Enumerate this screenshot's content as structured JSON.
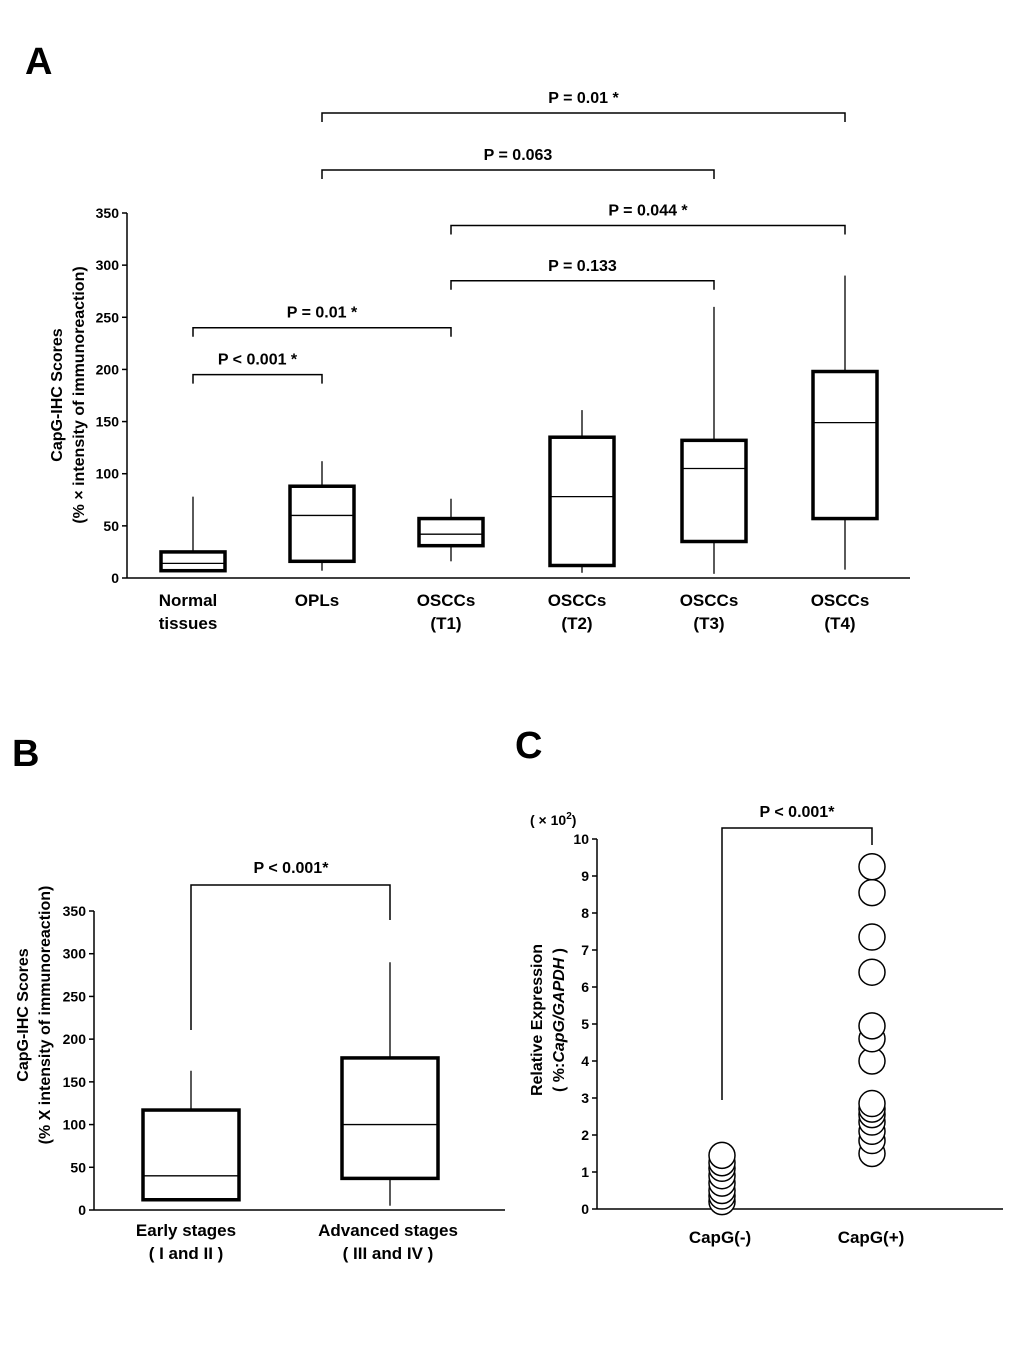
{
  "panels": {
    "a": {
      "letter": "A"
    },
    "b": {
      "letter": "B"
    },
    "c": {
      "letter": "C"
    }
  },
  "chart_data": [
    {
      "panel": "A",
      "type": "box",
      "ylabel_line1": "CapG-IHC Scores",
      "ylabel_line2": "(% × intensity of immunoreaction)",
      "ylim": [
        0,
        350
      ],
      "yticks": [
        0,
        50,
        100,
        150,
        200,
        250,
        300,
        350
      ],
      "categories": [
        {
          "line1": "Normal",
          "line2": "tissues"
        },
        {
          "line1": "OPLs",
          "line2": ""
        },
        {
          "line1": "OSCCs",
          "line2": "(T1)"
        },
        {
          "line1": "OSCCs",
          "line2": "(T2)"
        },
        {
          "line1": "OSCCs",
          "line2": "(T3)"
        },
        {
          "line1": "OSCCs",
          "line2": "(T4)"
        }
      ],
      "boxes": [
        {
          "min": 7,
          "q1": 7,
          "median": 14,
          "q3": 25,
          "max": 78
        },
        {
          "min": 7,
          "q1": 16,
          "median": 60,
          "q3": 88,
          "max": 112
        },
        {
          "min": 16,
          "q1": 31,
          "median": 42,
          "q3": 57,
          "max": 76
        },
        {
          "min": 5,
          "q1": 12,
          "median": 78,
          "q3": 135,
          "max": 161
        },
        {
          "min": 4,
          "q1": 35,
          "median": 105,
          "q3": 132,
          "max": 260
        },
        {
          "min": 8,
          "q1": 57,
          "median": 149,
          "q3": 198,
          "max": 290
        }
      ],
      "comparisons": [
        {
          "from": 0,
          "to": 1,
          "label": "P < 0.001 *",
          "y": 195
        },
        {
          "from": 0,
          "to": 2,
          "label": "P = 0.01 *",
          "y": 240
        },
        {
          "from": 2,
          "to": 4,
          "label": "P = 0.133",
          "y": 285
        },
        {
          "from": 2,
          "to": 5,
          "label": "P = 0.044 *",
          "y": 338
        }
      ],
      "comparisons_above": [
        {
          "from": 1,
          "to": 4,
          "label": "P = 0.063"
        },
        {
          "from": 1,
          "to": 5,
          "label": "P = 0.01 *"
        }
      ]
    },
    {
      "panel": "B",
      "type": "box",
      "ylabel_line1": "CapG-IHC Scores",
      "ylabel_line2": "(% X intensity of immunoreaction)",
      "ylim": [
        0,
        350
      ],
      "yticks": [
        0,
        50,
        100,
        150,
        200,
        250,
        300,
        350
      ],
      "categories": [
        {
          "line1": "Early stages",
          "line2": "( I and II )"
        },
        {
          "line1": "Advanced stages",
          "line2": "( III and IV )"
        }
      ],
      "boxes": [
        {
          "min": 12,
          "q1": 12,
          "median": 40,
          "q3": 117,
          "max": 163
        },
        {
          "min": 5,
          "q1": 37,
          "median": 100,
          "q3": 178,
          "max": 290
        }
      ],
      "comparison": {
        "label": "P < 0.001*"
      }
    },
    {
      "panel": "C",
      "type": "scatter",
      "multiplier_label": "( × 10",
      "multiplier_exp": "2",
      "multiplier_close": ")",
      "ylabel_line1": "Relative Expression",
      "ylabel_line2_pre": "( %:",
      "ylabel_line2_italic": "CapG/GAPDH",
      "ylabel_line2_post": " )",
      "ylim": [
        0,
        10
      ],
      "yticks": [
        0,
        1,
        2,
        3,
        4,
        5,
        6,
        7,
        8,
        9,
        10
      ],
      "categories": [
        "CapG(-)",
        "CapG(+)"
      ],
      "series": [
        {
          "values": [
            0.2,
            0.35,
            0.5,
            0.7,
            0.9,
            1.1,
            1.25,
            1.45
          ]
        },
        {
          "values": [
            1.5,
            1.85,
            2.1,
            2.35,
            2.55,
            2.7,
            2.85,
            4.0,
            4.6,
            4.95,
            6.4,
            7.35,
            8.55,
            9.25
          ]
        }
      ],
      "comparison": {
        "label": "P < 0.001*"
      }
    }
  ]
}
